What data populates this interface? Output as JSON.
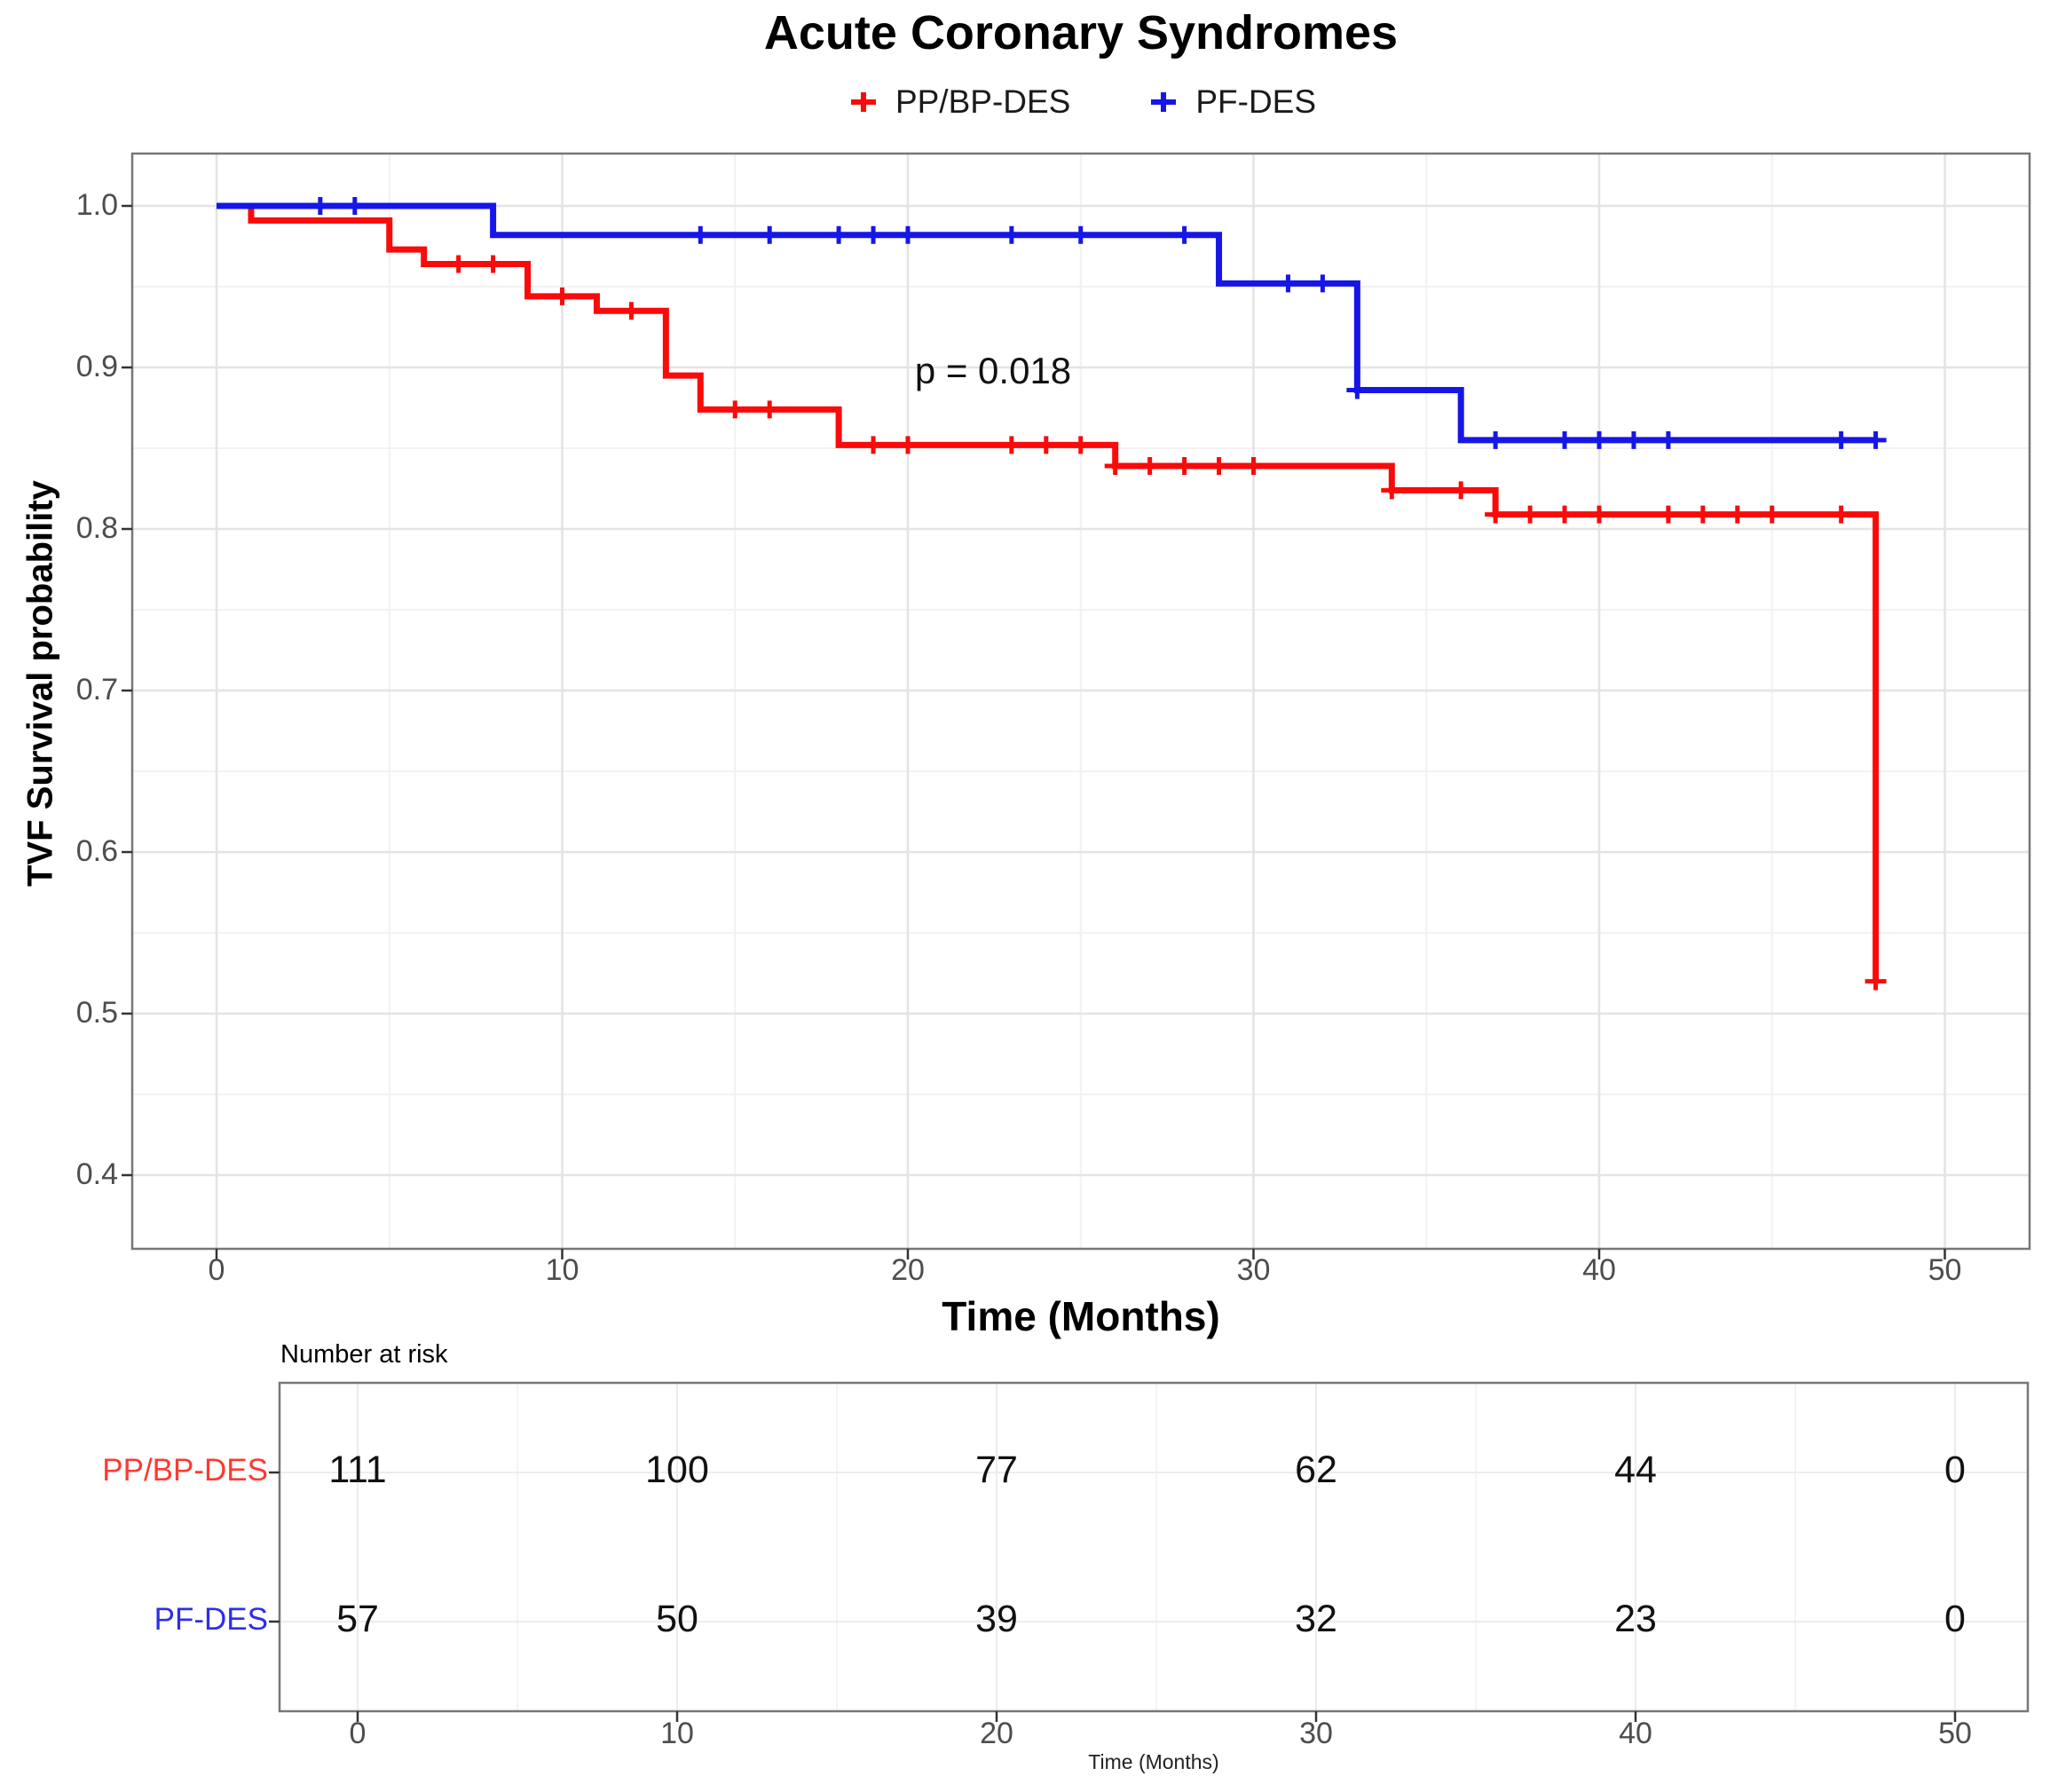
{
  "title": "Acute Coronary Syndromes",
  "legend": {
    "items": [
      {
        "label": "PP/BP-DES",
        "color": "#fa0a0a",
        "marker": "plus-icon"
      },
      {
        "label": "PF-DES",
        "color": "#1616e6",
        "marker": "plus-icon"
      }
    ]
  },
  "annotation": {
    "text": "p = 0.018",
    "x_months": 22.5,
    "y_survival": 0.897
  },
  "axes": {
    "x": {
      "label": "Time (Months)",
      "ticks": [
        0,
        10,
        20,
        30,
        40,
        50
      ],
      "minor": [
        5,
        15,
        25,
        35,
        45
      ],
      "range": [
        -2.5,
        52.5
      ]
    },
    "y": {
      "label": "TVF Survival probability",
      "ticks": [
        1.0,
        0.9,
        0.8,
        0.7,
        0.6,
        0.5,
        0.4
      ],
      "minor": [
        0.95,
        0.85,
        0.75,
        0.65,
        0.55,
        0.45
      ],
      "range": [
        0.345,
        1.032
      ]
    }
  },
  "chart_data": {
    "type": "line",
    "subtype": "kaplan-meier-step",
    "title": "Acute Coronary Syndromes",
    "xlabel": "Time (Months)",
    "ylabel": "TVF Survival probability",
    "xlim": [
      -2.5,
      52.5
    ],
    "ylim": [
      0.345,
      1.032
    ],
    "grid": true,
    "legend_position": "top",
    "series": [
      {
        "name": "PP/BP-DES",
        "color": "#fa0a0a",
        "steps": [
          [
            0,
            1.0
          ],
          [
            1,
            0.991
          ],
          [
            5,
            0.973
          ],
          [
            6,
            0.964
          ],
          [
            9,
            0.944
          ],
          [
            11,
            0.935
          ],
          [
            13,
            0.895
          ],
          [
            14,
            0.874
          ],
          [
            18,
            0.852
          ],
          [
            26,
            0.839
          ],
          [
            34,
            0.824
          ],
          [
            37,
            0.809
          ],
          [
            48,
            0.52
          ]
        ],
        "censors": [
          [
            7,
            0.964
          ],
          [
            8,
            0.964
          ],
          [
            10,
            0.944
          ],
          [
            12,
            0.935
          ],
          [
            15,
            0.874
          ],
          [
            16,
            0.874
          ],
          [
            19,
            0.852
          ],
          [
            20,
            0.852
          ],
          [
            23,
            0.852
          ],
          [
            24,
            0.852
          ],
          [
            25,
            0.852
          ],
          [
            26,
            0.839
          ],
          [
            27,
            0.839
          ],
          [
            28,
            0.839
          ],
          [
            29,
            0.839
          ],
          [
            30,
            0.839
          ],
          [
            34,
            0.824
          ],
          [
            36,
            0.824
          ],
          [
            37,
            0.809
          ],
          [
            38,
            0.809
          ],
          [
            39,
            0.809
          ],
          [
            40,
            0.809
          ],
          [
            42,
            0.809
          ],
          [
            43,
            0.809
          ],
          [
            44,
            0.809
          ],
          [
            45,
            0.809
          ],
          [
            47,
            0.809
          ],
          [
            48,
            0.52
          ]
        ]
      },
      {
        "name": "PF-DES",
        "color": "#1616e6",
        "steps": [
          [
            0,
            1.0
          ],
          [
            8,
            0.982
          ],
          [
            29,
            0.952
          ],
          [
            33,
            0.886
          ],
          [
            36,
            0.855
          ],
          [
            48,
            0.855
          ]
        ],
        "censors": [
          [
            3,
            1.0
          ],
          [
            4,
            1.0
          ],
          [
            14,
            0.982
          ],
          [
            16,
            0.982
          ],
          [
            18,
            0.982
          ],
          [
            19,
            0.982
          ],
          [
            20,
            0.982
          ],
          [
            23,
            0.982
          ],
          [
            25,
            0.982
          ],
          [
            28,
            0.982
          ],
          [
            31,
            0.952
          ],
          [
            32,
            0.952
          ],
          [
            33,
            0.886
          ],
          [
            37,
            0.855
          ],
          [
            39,
            0.855
          ],
          [
            40,
            0.855
          ],
          [
            41,
            0.855
          ],
          [
            42,
            0.855
          ],
          [
            47,
            0.855
          ],
          [
            48,
            0.855
          ]
        ]
      }
    ]
  },
  "risk_table": {
    "caption": "Number at risk",
    "xlabel": "Time (Months)",
    "times": [
      0,
      10,
      20,
      30,
      40,
      50
    ],
    "rows": [
      {
        "label": "PP/BP-DES",
        "color": "#fb3a30",
        "values": [
          111,
          100,
          77,
          62,
          44,
          0
        ]
      },
      {
        "label": "PF-DES",
        "color": "#2e2ee8",
        "values": [
          57,
          50,
          39,
          32,
          23,
          0
        ]
      }
    ]
  }
}
